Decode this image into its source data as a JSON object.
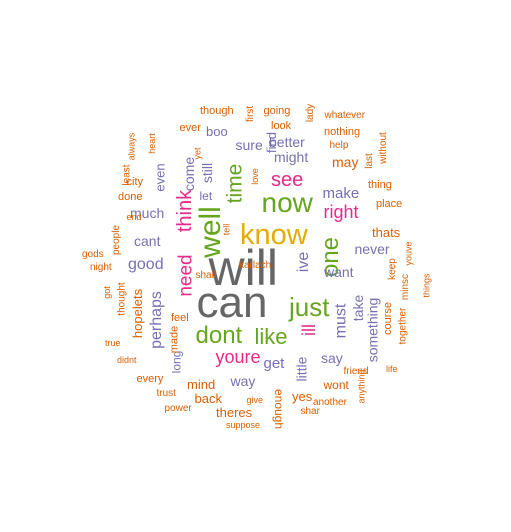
{
  "colors": {
    "gray": "#666666",
    "gold": "#E6AB02",
    "pink": "#E7298A",
    "green": "#66A61E",
    "purple": "#7570B3",
    "orange": "#D95F02"
  },
  "words": [
    {
      "text": "will",
      "color": "gray"
    },
    {
      "text": "can",
      "color": "gray"
    },
    {
      "text": "know",
      "color": "gold"
    },
    {
      "text": "now",
      "color": "green"
    },
    {
      "text": "well",
      "color": "green"
    },
    {
      "text": "just",
      "color": "green"
    },
    {
      "text": "dont",
      "color": "green"
    },
    {
      "text": "like",
      "color": "green"
    },
    {
      "text": "one",
      "color": "green"
    },
    {
      "text": "time",
      "color": "green"
    },
    {
      "text": "see",
      "color": "pink"
    },
    {
      "text": "think",
      "color": "pink"
    },
    {
      "text": "right",
      "color": "pink"
    },
    {
      "text": "youre",
      "color": "pink"
    },
    {
      "text": "need",
      "color": "pink"
    },
    {
      "text": "ill",
      "color": "pink"
    },
    {
      "text": "ive",
      "color": "purple"
    },
    {
      "text": "good",
      "color": "purple"
    },
    {
      "text": "perhaps",
      "color": "purple"
    },
    {
      "text": "must",
      "color": "purple"
    },
    {
      "text": "make",
      "color": "purple"
    },
    {
      "text": "might",
      "color": "purple"
    },
    {
      "text": "come",
      "color": "purple"
    },
    {
      "text": "still",
      "color": "purple"
    },
    {
      "text": "much",
      "color": "purple"
    },
    {
      "text": "cant",
      "color": "purple"
    },
    {
      "text": "take",
      "color": "purple"
    },
    {
      "text": "want",
      "color": "purple"
    },
    {
      "text": "never",
      "color": "purple"
    },
    {
      "text": "get",
      "color": "purple"
    },
    {
      "text": "say",
      "color": "purple"
    },
    {
      "text": "little",
      "color": "purple"
    },
    {
      "text": "something",
      "color": "purple"
    },
    {
      "text": "way",
      "color": "purple"
    },
    {
      "text": "better",
      "color": "purple"
    },
    {
      "text": "sure",
      "color": "purple"
    },
    {
      "text": "find",
      "color": "purple"
    },
    {
      "text": "even",
      "color": "purple"
    },
    {
      "text": "let",
      "color": "purple"
    },
    {
      "text": "long",
      "color": "purple"
    },
    {
      "text": "boo",
      "color": "purple"
    },
    {
      "text": "thats",
      "color": "orange"
    },
    {
      "text": "may",
      "color": "orange"
    },
    {
      "text": "hopelets",
      "color": "orange"
    },
    {
      "text": "mind",
      "color": "orange"
    },
    {
      "text": "back",
      "color": "orange"
    },
    {
      "text": "theres",
      "color": "orange"
    },
    {
      "text": "yes",
      "color": "orange"
    },
    {
      "text": "wont",
      "color": "orange"
    },
    {
      "text": "enough",
      "color": "orange"
    },
    {
      "text": "keep",
      "color": "orange"
    },
    {
      "text": "course",
      "color": "orange"
    },
    {
      "text": "place",
      "color": "orange"
    },
    {
      "text": "thing",
      "color": "orange"
    },
    {
      "text": "feel",
      "color": "orange"
    },
    {
      "text": "thought",
      "color": "orange"
    },
    {
      "text": "every",
      "color": "orange"
    },
    {
      "text": "going",
      "color": "orange"
    },
    {
      "text": "look",
      "color": "orange"
    },
    {
      "text": "nothing",
      "color": "orange"
    },
    {
      "text": "help",
      "color": "orange"
    },
    {
      "text": "whatever",
      "color": "orange"
    },
    {
      "text": "ever",
      "color": "orange"
    },
    {
      "text": "though",
      "color": "orange"
    },
    {
      "text": "first",
      "color": "orange"
    },
    {
      "text": "lady",
      "color": "orange"
    },
    {
      "text": "last",
      "color": "orange"
    },
    {
      "text": "without",
      "color": "orange"
    },
    {
      "text": "love",
      "color": "orange"
    },
    {
      "text": "yet",
      "color": "orange"
    },
    {
      "text": "heart",
      "color": "orange"
    },
    {
      "text": "always",
      "color": "orange"
    },
    {
      "text": "least",
      "color": "orange"
    },
    {
      "text": "city",
      "color": "orange"
    },
    {
      "text": "done",
      "color": "orange"
    },
    {
      "text": "end",
      "color": "orange"
    },
    {
      "text": "people",
      "color": "orange"
    },
    {
      "text": "gods",
      "color": "orange"
    },
    {
      "text": "night",
      "color": "orange"
    },
    {
      "text": "got",
      "color": "orange"
    },
    {
      "text": "true",
      "color": "orange"
    },
    {
      "text": "didnt",
      "color": "orange"
    },
    {
      "text": "made",
      "color": "orange"
    },
    {
      "text": "shall",
      "color": "orange"
    },
    {
      "text": "tell",
      "color": "orange"
    },
    {
      "text": "trust",
      "color": "orange"
    },
    {
      "text": "power",
      "color": "orange"
    },
    {
      "text": "suppose",
      "color": "orange"
    },
    {
      "text": "give",
      "color": "orange"
    },
    {
      "text": "shar",
      "color": "orange"
    },
    {
      "text": "another",
      "color": "orange"
    },
    {
      "text": "friend",
      "color": "orange"
    },
    {
      "text": "life",
      "color": "orange"
    },
    {
      "text": "anything",
      "color": "orange"
    },
    {
      "text": "together",
      "color": "orange"
    },
    {
      "text": "minsc",
      "color": "orange"
    },
    {
      "text": "youve",
      "color": "orange"
    },
    {
      "text": "things",
      "color": "orange"
    },
    {
      "text": "karlach",
      "color": "orange"
    }
  ]
}
